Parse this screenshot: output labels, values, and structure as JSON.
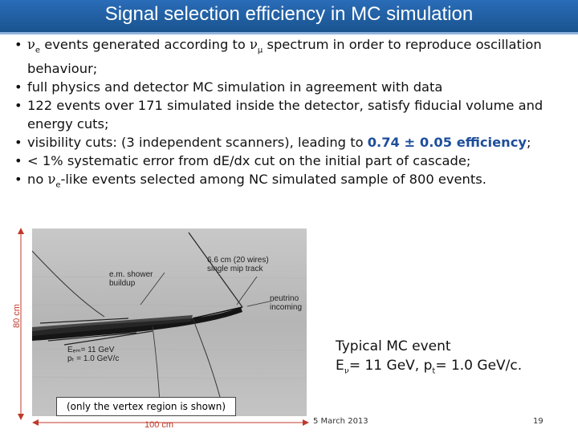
{
  "title": "Signal selection efficiency in MC simulation",
  "bullets": {
    "b1": {
      "nu": "ν",
      "sub1": "e",
      "text1": " events generated according to ",
      "nu2": "ν",
      "sub2": "μ",
      "text2": " spectrum in order to reproduce oscillation behaviour;"
    },
    "b2": {
      "text": "full physics and detector MC simulation in agreement with data"
    },
    "b3": {
      "text": "122 events over 171 simulated inside the detector, satisfy fiducial volume and energy cuts;"
    },
    "b4": {
      "text1": "visibility cuts: (3 independent scanners), leading to ",
      "highlight": "0.74 ± 0.05 efficiency",
      "text2": ";"
    },
    "b5": {
      "text": "< 1% systematic error from dE/dx cut on the initial part of cascade;"
    },
    "b6": {
      "text1": "no ",
      "nu": "ν",
      "sub": "e",
      "text2": "-like events selected among NC simulated sample of 800 events."
    }
  },
  "bullet_char": "•",
  "figure": {
    "label_em_shower": [
      "e.m. shower",
      "buildup"
    ],
    "label_track": [
      "6.6 cm (20 wires)",
      "single mip track"
    ],
    "label_neutrino": [
      "neutrino",
      "incoming"
    ],
    "label_energy": [
      "Eₑₘ= 11  GeV",
      "pₜ = 1.0 GeV/c"
    ],
    "axis_vertical": "80 cm",
    "axis_horizontal": "100 cm"
  },
  "note": "(only the vertex region is shown)",
  "caption": {
    "line1": "Typical MC event",
    "line2_a": "E",
    "line2_sub": "ν",
    "line2_b": "= 11 GeV,  p",
    "line2_sub2": "t",
    "line2_c": "= 1.0 GeV/c."
  },
  "footer": {
    "date": "5 March 2013",
    "page": "19"
  },
  "colors": {
    "title_bar": "#1f5fa8",
    "highlight": "#1e4e9a",
    "axis": "#c0392b"
  }
}
